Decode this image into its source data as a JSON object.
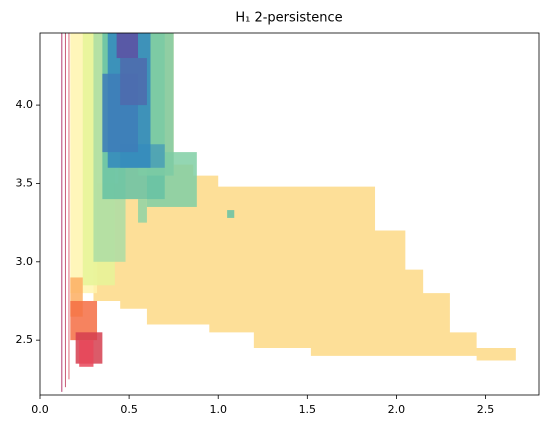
{
  "chart_data": {
    "type": "region",
    "title": "H₁ 2-persistence",
    "xlim": [
      0,
      2.8
    ],
    "ylim": [
      2.15,
      4.46
    ],
    "xticks": [
      {
        "value": 0,
        "label": "0.0"
      },
      0.5,
      {
        "value": 1,
        "label": "1.0"
      },
      1.5,
      {
        "value": 2,
        "label": "2.0"
      },
      2.5
    ],
    "yticks": [
      2.5,
      {
        "value": 3,
        "label": "3.0"
      },
      3.5,
      {
        "value": 4,
        "label": "4.0"
      }
    ],
    "regions": [
      {
        "color": "#fddf98",
        "x": [
          0.62,
          0.75,
          0.75,
          0.86,
          0.86,
          1.0,
          1.0,
          1.88,
          1.88,
          2.05,
          2.05,
          2.15,
          2.15,
          2.3,
          2.3,
          2.45,
          2.45,
          2.67,
          2.67,
          2.45,
          2.45,
          1.52,
          1.52,
          1.2,
          1.2,
          0.95,
          0.95,
          0.6,
          0.6,
          0.45,
          0.45,
          0.3,
          0.3,
          0.44,
          0.44
        ],
        "y": [
          4.46,
          4.46,
          3.62,
          3.62,
          3.55,
          3.55,
          3.48,
          3.48,
          3.2,
          3.2,
          2.95,
          2.95,
          2.8,
          2.8,
          2.55,
          2.55,
          2.45,
          2.45,
          2.37,
          2.37,
          2.4,
          2.4,
          2.45,
          2.45,
          2.55,
          2.55,
          2.6,
          2.6,
          2.7,
          2.7,
          2.75,
          2.75,
          3.5,
          3.5,
          4.46
        ]
      },
      {
        "color": "#9e0142",
        "x": [
          0.12,
          0.125
        ],
        "y": [
          2.17,
          4.46
        ]
      },
      {
        "color": "#b8284a",
        "x": [
          0.14,
          0.145
        ],
        "y": [
          2.2,
          4.46
        ]
      },
      {
        "color": "#d53e4f",
        "x": [
          0.16,
          0.165
        ],
        "y": [
          2.25,
          4.46
        ]
      },
      {
        "color": "#fff5ae",
        "x": [
          0.17,
          0.32
        ],
        "y": [
          2.8,
          4.46
        ]
      },
      {
        "color": "#e6f598",
        "x": [
          0.24,
          0.42
        ],
        "y": [
          2.85,
          4.46
        ]
      },
      {
        "color": "#abdda4",
        "x": [
          0.3,
          0.48
        ],
        "y": [
          3.0,
          4.46
        ]
      },
      {
        "color": "#80cfa5",
        "x": [
          0.6,
          0.88
        ],
        "y": [
          3.35,
          3.7
        ]
      },
      {
        "color": "#66c2a5",
        "x": [
          0.35,
          0.7
        ],
        "y": [
          3.4,
          4.46
        ]
      },
      {
        "color": "#7ccba4",
        "x": [
          0.55,
          0.75
        ],
        "y": [
          3.55,
          4.46
        ]
      },
      {
        "color": "#4a9fb6",
        "x": [
          0.45,
          0.7
        ],
        "y": [
          3.6,
          3.75
        ]
      },
      {
        "color": "#3288bd",
        "x": [
          0.38,
          0.62
        ],
        "y": [
          3.6,
          4.46
        ]
      },
      {
        "color": "#3e7cb8",
        "x": [
          0.35,
          0.55
        ],
        "y": [
          3.7,
          4.2
        ]
      },
      {
        "color": "#4f6aad",
        "x": [
          0.45,
          0.6
        ],
        "y": [
          4.0,
          4.3
        ]
      },
      {
        "color": "#5e4fa2",
        "x": [
          0.43,
          0.55
        ],
        "y": [
          4.3,
          4.46
        ]
      },
      {
        "color": "#fdae61",
        "x": [
          0.17,
          0.24
        ],
        "y": [
          2.65,
          2.9
        ]
      },
      {
        "color": "#f46d43",
        "x": [
          0.17,
          0.32
        ],
        "y": [
          2.5,
          2.75
        ]
      },
      {
        "color": "#d53e4f",
        "x": [
          0.2,
          0.35
        ],
        "y": [
          2.35,
          2.55
        ]
      },
      {
        "color": "#e8485a",
        "x": [
          0.22,
          0.3
        ],
        "y": [
          2.33,
          2.5
        ]
      },
      {
        "color": "#66c2a5",
        "x": [
          1.05,
          1.09
        ],
        "y": [
          3.28,
          3.33
        ]
      },
      {
        "color": "#8fd4a4",
        "x": [
          0.55,
          0.6
        ],
        "y": [
          3.25,
          3.4
        ]
      }
    ]
  }
}
